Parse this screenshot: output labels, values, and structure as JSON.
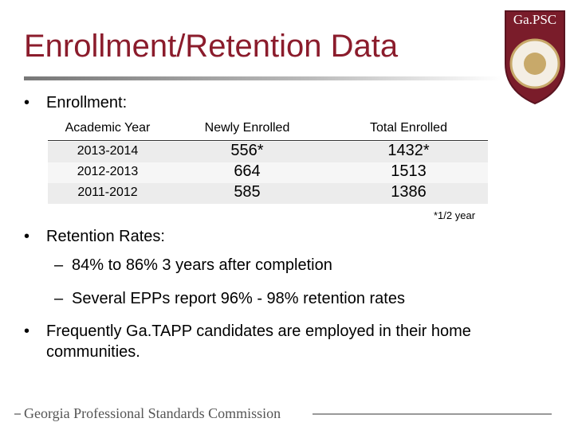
{
  "header": {
    "title": "Enrollment/Retention Data"
  },
  "logo": {
    "label": "Ga.PSC"
  },
  "enrollment": {
    "heading": "Enrollment:",
    "table": {
      "columns": [
        "Academic Year",
        "Newly Enrolled",
        "Total Enrolled"
      ],
      "rows": [
        [
          "2013-2014",
          "556*",
          "1432*"
        ],
        [
          "2012-2013",
          "664",
          "1513"
        ],
        [
          "2011-2012",
          "585",
          "1386"
        ]
      ]
    },
    "note": "*1/2 year"
  },
  "retention": {
    "heading": "Retention Rates",
    "items": [
      "84% to 86% 3 years after completion",
      "Several EPPs report 96% - 98% retention rates"
    ]
  },
  "employment": {
    "text": "Frequently Ga.TAPP candidates are employed in their home communities."
  },
  "footer": {
    "text": "Georgia Professional Standards Commission"
  }
}
